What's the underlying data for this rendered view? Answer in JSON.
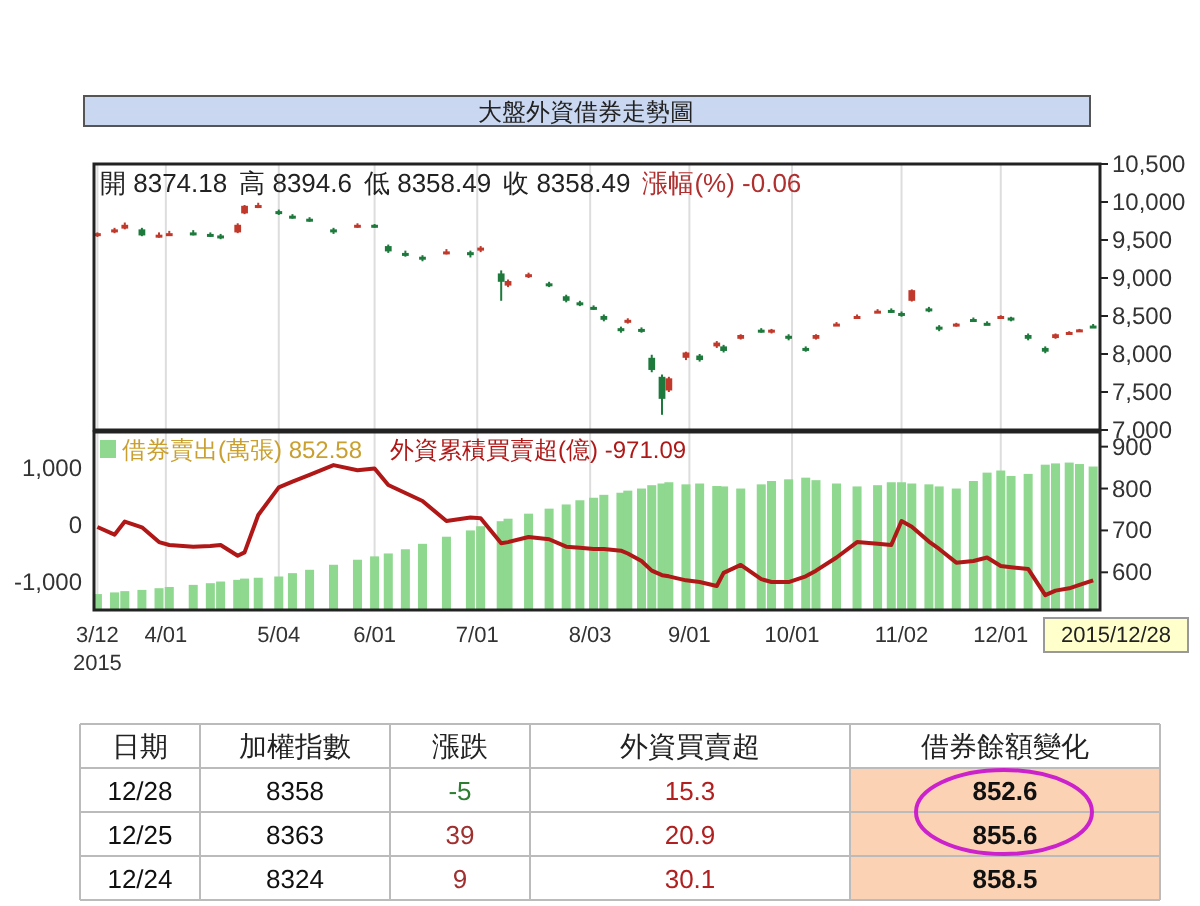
{
  "chart_data": [
    {
      "type": "candlestick",
      "title": "大盤外資借券走勢圖",
      "x": [
        "2015-03-12",
        "2015-03-17",
        "2015-03-20",
        "2015-03-25",
        "2015-03-30",
        "2015-04-02",
        "2015-04-09",
        "2015-04-14",
        "2015-04-17",
        "2015-04-22",
        "2015-04-24",
        "2015-04-28",
        "2015-05-04",
        "2015-05-08",
        "2015-05-13",
        "2015-05-20",
        "2015-05-27",
        "2015-06-01",
        "2015-06-05",
        "2015-06-10",
        "2015-06-15",
        "2015-06-22",
        "2015-06-29",
        "2015-07-02",
        "2015-07-08",
        "2015-07-10",
        "2015-07-16",
        "2015-07-22",
        "2015-07-27",
        "2015-07-31",
        "2015-08-04",
        "2015-08-07",
        "2015-08-12",
        "2015-08-14",
        "2015-08-18",
        "2015-08-21",
        "2015-08-24",
        "2015-08-26",
        "2015-08-31",
        "2015-09-04",
        "2015-09-09",
        "2015-09-11",
        "2015-09-16",
        "2015-09-22",
        "2015-09-25",
        "2015-09-30",
        "2015-10-05",
        "2015-10-08",
        "2015-10-14",
        "2015-10-20",
        "2015-10-26",
        "2015-10-30",
        "2015-11-02",
        "2015-11-05",
        "2015-11-10",
        "2015-11-13",
        "2015-11-18",
        "2015-11-23",
        "2015-11-27",
        "2015-12-01",
        "2015-12-04",
        "2015-12-09",
        "2015-12-14",
        "2015-12-17",
        "2015-12-21",
        "2015-12-24",
        "2015-12-28"
      ],
      "ohlc": [
        [
          9560,
          9600,
          9540,
          9590
        ],
        [
          9600,
          9660,
          9590,
          9640
        ],
        [
          9650,
          9730,
          9640,
          9700
        ],
        [
          9640,
          9660,
          9550,
          9560
        ],
        [
          9560,
          9600,
          9530,
          9570
        ],
        [
          9580,
          9620,
          9560,
          9590
        ],
        [
          9600,
          9630,
          9560,
          9580
        ],
        [
          9580,
          9600,
          9540,
          9560
        ],
        [
          9560,
          9580,
          9510,
          9530
        ],
        [
          9600,
          9720,
          9590,
          9700
        ],
        [
          9850,
          9960,
          9840,
          9950
        ],
        [
          9940,
          9990,
          9920,
          9960
        ],
        [
          9880,
          9900,
          9830,
          9850
        ],
        [
          9820,
          9840,
          9780,
          9800
        ],
        [
          9780,
          9800,
          9740,
          9760
        ],
        [
          9640,
          9660,
          9580,
          9600
        ],
        [
          9680,
          9720,
          9660,
          9700
        ],
        [
          9700,
          9710,
          9660,
          9680
        ],
        [
          9420,
          9440,
          9330,
          9350
        ],
        [
          9330,
          9360,
          9280,
          9300
        ],
        [
          9280,
          9300,
          9220,
          9250
        ],
        [
          9330,
          9380,
          9310,
          9350
        ],
        [
          9340,
          9360,
          9270,
          9300
        ],
        [
          9360,
          9420,
          9340,
          9400
        ],
        [
          9060,
          9100,
          8700,
          8950
        ],
        [
          8900,
          8980,
          8880,
          8960
        ],
        [
          9020,
          9070,
          9000,
          9050
        ],
        [
          8930,
          8950,
          8880,
          8900
        ],
        [
          8760,
          8780,
          8680,
          8700
        ],
        [
          8680,
          8700,
          8630,
          8650
        ],
        [
          8620,
          8640,
          8580,
          8600
        ],
        [
          8500,
          8520,
          8430,
          8450
        ],
        [
          8340,
          8360,
          8280,
          8300
        ],
        [
          8420,
          8470,
          8400,
          8450
        ],
        [
          8330,
          8350,
          8280,
          8300
        ],
        [
          7950,
          7990,
          7760,
          7790
        ],
        [
          7700,
          7730,
          7200,
          7410
        ],
        [
          7520,
          7700,
          7500,
          7680
        ],
        [
          7950,
          8030,
          7920,
          8020
        ],
        [
          7980,
          8000,
          7900,
          7920
        ],
        [
          8100,
          8170,
          8080,
          8150
        ],
        [
          8100,
          8120,
          8020,
          8040
        ],
        [
          8200,
          8260,
          8190,
          8250
        ],
        [
          8320,
          8340,
          8280,
          8300
        ],
        [
          8290,
          8330,
          8270,
          8320
        ],
        [
          8240,
          8260,
          8180,
          8200
        ],
        [
          8080,
          8100,
          8030,
          8050
        ],
        [
          8200,
          8260,
          8190,
          8250
        ],
        [
          8380,
          8420,
          8370,
          8400
        ],
        [
          8480,
          8520,
          8470,
          8500
        ],
        [
          8550,
          8590,
          8540,
          8570
        ],
        [
          8580,
          8600,
          8540,
          8560
        ],
        [
          8540,
          8560,
          8490,
          8520
        ],
        [
          8700,
          8850,
          8690,
          8840
        ],
        [
          8600,
          8620,
          8550,
          8570
        ],
        [
          8360,
          8380,
          8300,
          8320
        ],
        [
          8370,
          8410,
          8360,
          8400
        ],
        [
          8460,
          8480,
          8430,
          8450
        ],
        [
          8410,
          8430,
          8380,
          8390
        ],
        [
          8470,
          8510,
          8460,
          8500
        ],
        [
          8480,
          8490,
          8430,
          8450
        ],
        [
          8250,
          8270,
          8180,
          8200
        ],
        [
          8080,
          8100,
          8010,
          8030
        ],
        [
          8210,
          8270,
          8200,
          8260
        ],
        [
          8280,
          8300,
          8260,
          8290
        ],
        [
          8310,
          8330,
          8300,
          8324
        ],
        [
          8374.18,
          8394.6,
          8358.49,
          8358.49
        ]
      ],
      "xlim": [
        "2015-03-11",
        "2015-12-30"
      ],
      "xticks": [
        "2015-03-12",
        "2015-04-01",
        "2015-05-04",
        "2015-06-01",
        "2015-07-01",
        "2015-08-03",
        "2015-09-01",
        "2015-10-01",
        "2015-11-02",
        "2015-12-01"
      ],
      "ylim": [
        7000,
        10500
      ],
      "yticks": [
        {
          "value": 7000,
          "label": "7,000"
        },
        {
          "value": 7500,
          "label": "7,500"
        },
        {
          "value": 8000,
          "label": "8,000"
        },
        {
          "value": 8500,
          "label": "8,500"
        },
        {
          "value": 9000,
          "label": "9,000"
        },
        {
          "value": 9500,
          "label": "9,500"
        },
        {
          "value": 10000,
          "label": "10,000"
        },
        {
          "value": 10500,
          "label": "10,500"
        }
      ],
      "tick_labels": "y",
      "grid": "x",
      "annotations": [
        "開 8374.18",
        "高 8394.6",
        "低 8358.49",
        "收 8358.49",
        "漲幅(%) -0.06"
      ]
    },
    {
      "type": "bar",
      "x": [
        "2015-03-12",
        "2015-03-17",
        "2015-03-20",
        "2015-03-25",
        "2015-03-30",
        "2015-04-02",
        "2015-04-09",
        "2015-04-14",
        "2015-04-17",
        "2015-04-22",
        "2015-04-24",
        "2015-04-28",
        "2015-05-04",
        "2015-05-08",
        "2015-05-13",
        "2015-05-20",
        "2015-05-27",
        "2015-06-01",
        "2015-06-05",
        "2015-06-10",
        "2015-06-15",
        "2015-06-22",
        "2015-06-29",
        "2015-07-02",
        "2015-07-08",
        "2015-07-10",
        "2015-07-16",
        "2015-07-22",
        "2015-07-27",
        "2015-07-31",
        "2015-08-04",
        "2015-08-07",
        "2015-08-12",
        "2015-08-14",
        "2015-08-18",
        "2015-08-21",
        "2015-08-24",
        "2015-08-26",
        "2015-08-31",
        "2015-09-04",
        "2015-09-09",
        "2015-09-11",
        "2015-09-16",
        "2015-09-22",
        "2015-09-25",
        "2015-09-30",
        "2015-10-05",
        "2015-10-08",
        "2015-10-14",
        "2015-10-20",
        "2015-10-26",
        "2015-10-30",
        "2015-11-02",
        "2015-11-05",
        "2015-11-10",
        "2015-11-13",
        "2015-11-18",
        "2015-11-23",
        "2015-11-27",
        "2015-12-01",
        "2015-12-04",
        "2015-12-09",
        "2015-12-14",
        "2015-12-17",
        "2015-12-21",
        "2015-12-24",
        "2015-12-28"
      ],
      "series": [
        {
          "name": "借券賣出(萬張) 852.58",
          "type": "bar",
          "axis": "y2",
          "color": "#8fd88f",
          "values": [
            548,
            552,
            555,
            558,
            562,
            565,
            570,
            574,
            578,
            582,
            585,
            587,
            590,
            598,
            606,
            618,
            630,
            638,
            645,
            655,
            668,
            685,
            700,
            710,
            722,
            728,
            740,
            752,
            762,
            772,
            778,
            785,
            790,
            795,
            800,
            808,
            812,
            815,
            810,
            812,
            806,
            805,
            800,
            810,
            818,
            822,
            826,
            820,
            812,
            805,
            808,
            815,
            815,
            812,
            810,
            805,
            800,
            818,
            838,
            843,
            830,
            835,
            857,
            860,
            862,
            858.5,
            852.58
          ]
        },
        {
          "name": "外資累積買賣超(億) -971.09",
          "type": "line",
          "color": "#b01818",
          "values": [
            -35,
            -170,
            60,
            -40,
            -300,
            -350,
            -380,
            -370,
            -350,
            -540,
            -480,
            175,
            660,
            760,
            880,
            1050,
            960,
            990,
            700,
            560,
            420,
            70,
            130,
            120,
            -320,
            -300,
            -210,
            -250,
            -380,
            -400,
            -420,
            -420,
            -450,
            -500,
            -630,
            -800,
            -880,
            -900,
            -970,
            -1000,
            -1070,
            -840,
            -700,
            -950,
            -1000,
            -1000,
            -900,
            -800,
            -570,
            -300,
            -330,
            -350,
            70,
            -30,
            -290,
            -420,
            -660,
            -630,
            -570,
            -720,
            -740,
            -770,
            -1230,
            -1150,
            -1110,
            -1050,
            -971.09
          ]
        }
      ],
      "xlim": [
        "2015-03-11",
        "2015-12-30"
      ],
      "xticks": [
        {
          "value": "2015-03-12",
          "label": "3/12\n2015"
        },
        {
          "value": "2015-04-01",
          "label": "4/01"
        },
        {
          "value": "2015-05-04",
          "label": "5/04"
        },
        {
          "value": "2015-06-01",
          "label": "6/01"
        },
        {
          "value": "2015-07-01",
          "label": "7/01"
        },
        {
          "value": "2015-08-03",
          "label": "8/03"
        },
        {
          "value": "2015-09-01",
          "label": "9/01"
        },
        {
          "value": "2015-10-01",
          "label": "10/01"
        },
        {
          "value": "2015-11-02",
          "label": "11/02"
        },
        {
          "value": "2015-12-01",
          "label": "12/01"
        }
      ],
      "ylim": [
        -1490,
        1630
      ],
      "yticks": [
        {
          "value": -1000,
          "label": "-1,000"
        },
        0,
        {
          "value": 1000,
          "label": "1,000"
        }
      ],
      "y2lim": [
        510,
        935
      ],
      "y2ticks": [
        600,
        700,
        800,
        900
      ],
      "grid": "x",
      "legend": "top left",
      "annotations": [
        "2015/12/28"
      ]
    },
    {
      "type": "other",
      "categories": [
        "日期",
        "加權指數",
        "漲跌",
        "外資買賣超",
        "借券餘額變化"
      ],
      "cell_labels": [
        [
          "12/28",
          "8358",
          "-5",
          "15.3",
          "852.6"
        ],
        [
          "12/25",
          "8363",
          "39",
          "20.9",
          "855.6"
        ],
        [
          "12/24",
          "8324",
          "9",
          "30.1",
          "858.5"
        ]
      ]
    }
  ]
}
